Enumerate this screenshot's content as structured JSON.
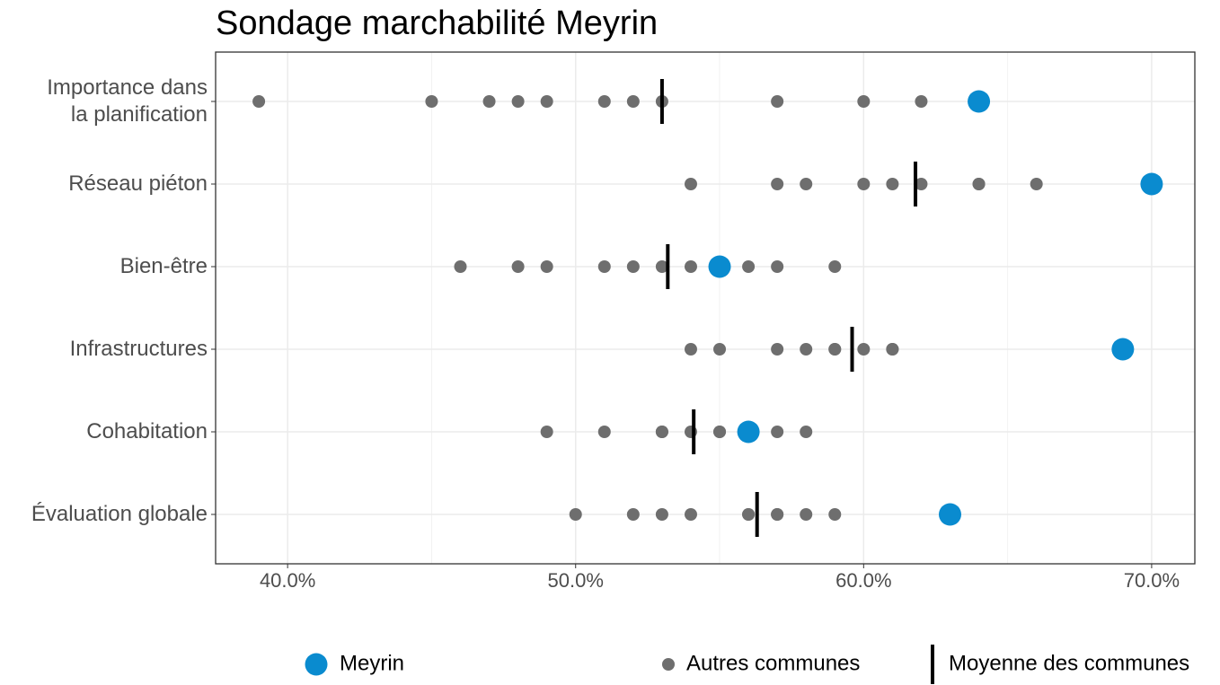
{
  "chart_data": {
    "type": "dot",
    "title": "Sondage marchabilité Meyrin",
    "categories": [
      "Importance dans\nla planification",
      "Réseau piéton",
      "Bien-être",
      "Infrastructures",
      "Cohabitation",
      "Évaluation globale"
    ],
    "series": [
      {
        "name": "Meyrin",
        "color": "#0a8bcf",
        "values": [
          64,
          70,
          55,
          69,
          56,
          63
        ]
      },
      {
        "name": "Autres communes",
        "color": "#6e6e6e",
        "values": [
          [
            39,
            45,
            47,
            48,
            49,
            51,
            52,
            53,
            57,
            60,
            62
          ],
          [
            54,
            57,
            58,
            60,
            61,
            62,
            64,
            64,
            66
          ],
          [
            46,
            48,
            49,
            51,
            52,
            53,
            54,
            56,
            57,
            59
          ],
          [
            54,
            55,
            57,
            58,
            59,
            59,
            60,
            61,
            61
          ],
          [
            49,
            51,
            53,
            53,
            54,
            55,
            55,
            57,
            58
          ],
          [
            50,
            52,
            53,
            54,
            56,
            56,
            57,
            57,
            58,
            59
          ]
        ]
      },
      {
        "name": "Moyenne des communes",
        "color": "#000000",
        "values": [
          53.0,
          61.8,
          53.2,
          59.6,
          54.1,
          56.3
        ]
      }
    ],
    "xlim": [
      37.5,
      71.5
    ],
    "xticks": [
      {
        "value": 40,
        "label": "40.0%"
      },
      {
        "value": 50,
        "label": "50.0%"
      },
      {
        "value": 60,
        "label": "60.0%"
      },
      {
        "value": 70,
        "label": "70.0%"
      }
    ],
    "grid": true,
    "legend": "bottom"
  }
}
